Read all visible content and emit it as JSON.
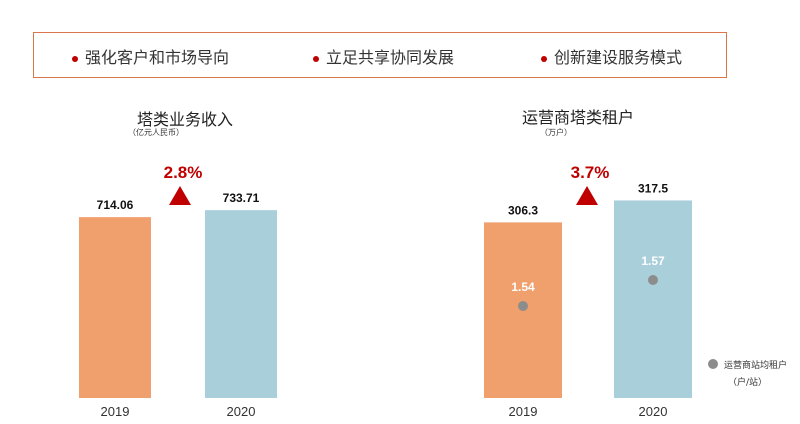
{
  "keywords": [
    "强化客户和市场导向",
    "立足共享协同发展",
    "创新建设服务模式"
  ],
  "legend": {
    "label": "运营商站均租户",
    "unit": "（户/站）",
    "color": "#8c8c8c"
  },
  "chart_data": [
    {
      "type": "bar",
      "title": "塔类业务收入",
      "subtitle": "（亿元人民币）",
      "categories": [
        "2019",
        "2020"
      ],
      "values": [
        714.06,
        733.71
      ],
      "value_labels": [
        "714.06",
        "733.71"
      ],
      "colors": [
        "#f0a06c",
        "#a9cfdb"
      ],
      "growth": "2.8%",
      "growth_color": "#c00000"
    },
    {
      "type": "bar",
      "title": "运营商塔类租户",
      "subtitle": "（万户）",
      "categories": [
        "2019",
        "2020"
      ],
      "values": [
        306.3,
        317.5
      ],
      "value_labels": [
        "306.3",
        "317.5"
      ],
      "colors": [
        "#f0a06c",
        "#a9cfdb"
      ],
      "growth": "3.7%",
      "growth_color": "#c00000",
      "secondary": {
        "name": "运营商站均租户",
        "values": [
          1.54,
          1.57
        ],
        "labels": [
          "1.54",
          "1.57"
        ]
      }
    }
  ]
}
